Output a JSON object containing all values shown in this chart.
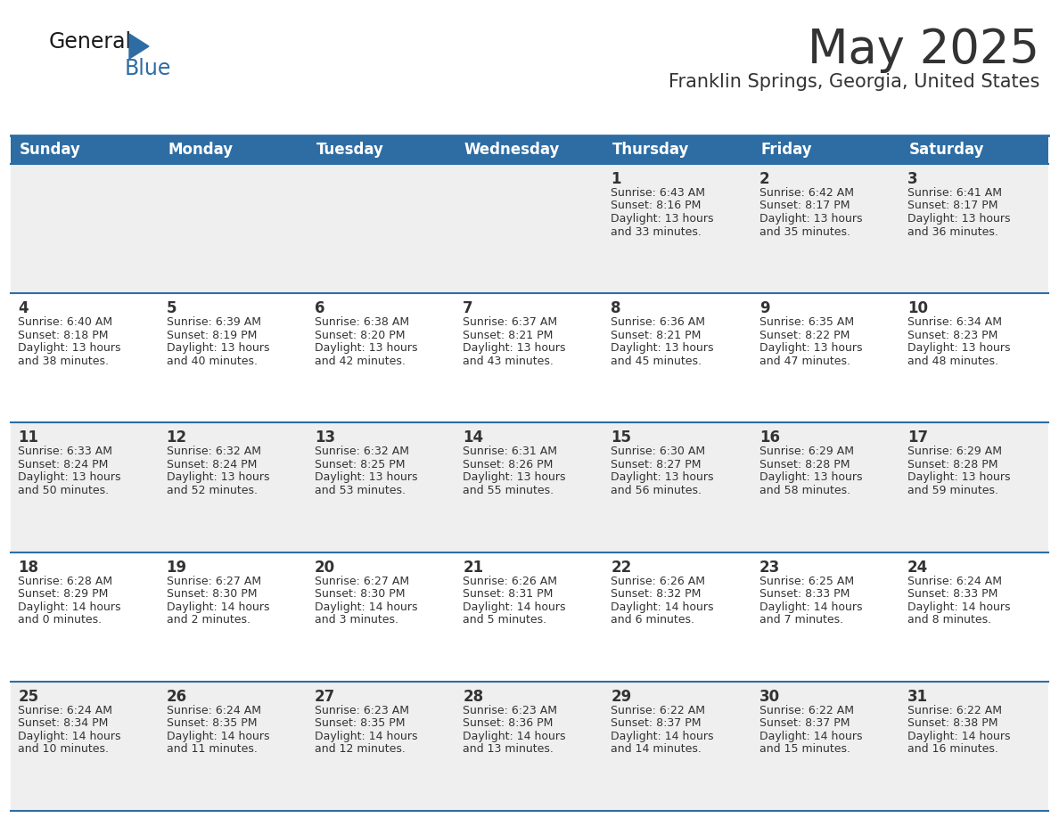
{
  "title": "May 2025",
  "subtitle": "Franklin Springs, Georgia, United States",
  "header_color": "#2E6DA4",
  "header_text_color": "#FFFFFF",
  "bg_color": "#FFFFFF",
  "cell_bg_row0": "#EFEFEF",
  "cell_bg_row1": "#FFFFFF",
  "cell_bg_row2": "#EFEFEF",
  "cell_bg_row3": "#FFFFFF",
  "cell_bg_row4": "#EFEFEF",
  "border_color": "#2E6DA4",
  "text_color": "#333333",
  "days_of_week": [
    "Sunday",
    "Monday",
    "Tuesday",
    "Wednesday",
    "Thursday",
    "Friday",
    "Saturday"
  ],
  "calendar": [
    [
      {
        "day": "",
        "sunrise": "",
        "sunset": "",
        "daylight": ""
      },
      {
        "day": "",
        "sunrise": "",
        "sunset": "",
        "daylight": ""
      },
      {
        "day": "",
        "sunrise": "",
        "sunset": "",
        "daylight": ""
      },
      {
        "day": "",
        "sunrise": "",
        "sunset": "",
        "daylight": ""
      },
      {
        "day": "1",
        "sunrise": "6:43 AM",
        "sunset": "8:16 PM",
        "daylight": "13 hours and 33 minutes."
      },
      {
        "day": "2",
        "sunrise": "6:42 AM",
        "sunset": "8:17 PM",
        "daylight": "13 hours and 35 minutes."
      },
      {
        "day": "3",
        "sunrise": "6:41 AM",
        "sunset": "8:17 PM",
        "daylight": "13 hours and 36 minutes."
      }
    ],
    [
      {
        "day": "4",
        "sunrise": "6:40 AM",
        "sunset": "8:18 PM",
        "daylight": "13 hours and 38 minutes."
      },
      {
        "day": "5",
        "sunrise": "6:39 AM",
        "sunset": "8:19 PM",
        "daylight": "13 hours and 40 minutes."
      },
      {
        "day": "6",
        "sunrise": "6:38 AM",
        "sunset": "8:20 PM",
        "daylight": "13 hours and 42 minutes."
      },
      {
        "day": "7",
        "sunrise": "6:37 AM",
        "sunset": "8:21 PM",
        "daylight": "13 hours and 43 minutes."
      },
      {
        "day": "8",
        "sunrise": "6:36 AM",
        "sunset": "8:21 PM",
        "daylight": "13 hours and 45 minutes."
      },
      {
        "day": "9",
        "sunrise": "6:35 AM",
        "sunset": "8:22 PM",
        "daylight": "13 hours and 47 minutes."
      },
      {
        "day": "10",
        "sunrise": "6:34 AM",
        "sunset": "8:23 PM",
        "daylight": "13 hours and 48 minutes."
      }
    ],
    [
      {
        "day": "11",
        "sunrise": "6:33 AM",
        "sunset": "8:24 PM",
        "daylight": "13 hours and 50 minutes."
      },
      {
        "day": "12",
        "sunrise": "6:32 AM",
        "sunset": "8:24 PM",
        "daylight": "13 hours and 52 minutes."
      },
      {
        "day": "13",
        "sunrise": "6:32 AM",
        "sunset": "8:25 PM",
        "daylight": "13 hours and 53 minutes."
      },
      {
        "day": "14",
        "sunrise": "6:31 AM",
        "sunset": "8:26 PM",
        "daylight": "13 hours and 55 minutes."
      },
      {
        "day": "15",
        "sunrise": "6:30 AM",
        "sunset": "8:27 PM",
        "daylight": "13 hours and 56 minutes."
      },
      {
        "day": "16",
        "sunrise": "6:29 AM",
        "sunset": "8:28 PM",
        "daylight": "13 hours and 58 minutes."
      },
      {
        "day": "17",
        "sunrise": "6:29 AM",
        "sunset": "8:28 PM",
        "daylight": "13 hours and 59 minutes."
      }
    ],
    [
      {
        "day": "18",
        "sunrise": "6:28 AM",
        "sunset": "8:29 PM",
        "daylight": "14 hours and 0 minutes."
      },
      {
        "day": "19",
        "sunrise": "6:27 AM",
        "sunset": "8:30 PM",
        "daylight": "14 hours and 2 minutes."
      },
      {
        "day": "20",
        "sunrise": "6:27 AM",
        "sunset": "8:30 PM",
        "daylight": "14 hours and 3 minutes."
      },
      {
        "day": "21",
        "sunrise": "6:26 AM",
        "sunset": "8:31 PM",
        "daylight": "14 hours and 5 minutes."
      },
      {
        "day": "22",
        "sunrise": "6:26 AM",
        "sunset": "8:32 PM",
        "daylight": "14 hours and 6 minutes."
      },
      {
        "day": "23",
        "sunrise": "6:25 AM",
        "sunset": "8:33 PM",
        "daylight": "14 hours and 7 minutes."
      },
      {
        "day": "24",
        "sunrise": "6:24 AM",
        "sunset": "8:33 PM",
        "daylight": "14 hours and 8 minutes."
      }
    ],
    [
      {
        "day": "25",
        "sunrise": "6:24 AM",
        "sunset": "8:34 PM",
        "daylight": "14 hours and 10 minutes."
      },
      {
        "day": "26",
        "sunrise": "6:24 AM",
        "sunset": "8:35 PM",
        "daylight": "14 hours and 11 minutes."
      },
      {
        "day": "27",
        "sunrise": "6:23 AM",
        "sunset": "8:35 PM",
        "daylight": "14 hours and 12 minutes."
      },
      {
        "day": "28",
        "sunrise": "6:23 AM",
        "sunset": "8:36 PM",
        "daylight": "14 hours and 13 minutes."
      },
      {
        "day": "29",
        "sunrise": "6:22 AM",
        "sunset": "8:37 PM",
        "daylight": "14 hours and 14 minutes."
      },
      {
        "day": "30",
        "sunrise": "6:22 AM",
        "sunset": "8:37 PM",
        "daylight": "14 hours and 15 minutes."
      },
      {
        "day": "31",
        "sunrise": "6:22 AM",
        "sunset": "8:38 PM",
        "daylight": "14 hours and 16 minutes."
      }
    ]
  ],
  "logo_text1": "General",
  "logo_text2": "Blue",
  "logo_color1": "#1a1a1a",
  "logo_color2": "#2E6DA4",
  "title_fontsize": 38,
  "subtitle_fontsize": 15,
  "day_header_fontsize": 12,
  "day_num_fontsize": 12,
  "cell_text_fontsize": 9
}
